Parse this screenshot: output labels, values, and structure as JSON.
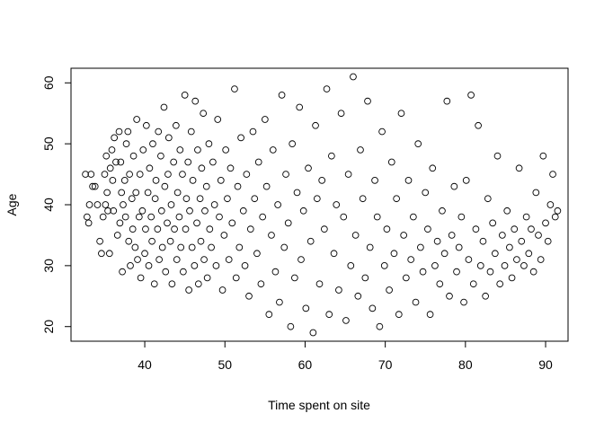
{
  "chart_data": {
    "type": "scatter",
    "title": "",
    "xlabel": "Time spent on site",
    "ylabel": "Age",
    "xlim": [
      30.8,
      92.8
    ],
    "ylim": [
      17.6,
      62.4
    ],
    "xticks": [
      40,
      50,
      60,
      70,
      80,
      90
    ],
    "yticks": [
      20,
      30,
      40,
      50,
      60
    ],
    "grid": false,
    "legend": "none",
    "marker": "open-circle",
    "colors": {
      "marker": "#000000",
      "axis": "#000000",
      "background": "#ffffff"
    },
    "points": [
      [
        32.6,
        45.0
      ],
      [
        32.8,
        38.0
      ],
      [
        33.0,
        37.0
      ],
      [
        33.1,
        40.0
      ],
      [
        33.3,
        45.0
      ],
      [
        33.5,
        43.0
      ],
      [
        33.8,
        43.0
      ],
      [
        34.1,
        40.0
      ],
      [
        34.4,
        34.0
      ],
      [
        34.6,
        32.0
      ],
      [
        34.8,
        38.0
      ],
      [
        35.0,
        45.0
      ],
      [
        35.1,
        40.0
      ],
      [
        35.2,
        48.0
      ],
      [
        35.3,
        42.0
      ],
      [
        35.4,
        39.0
      ],
      [
        35.6,
        32.0
      ],
      [
        35.7,
        46.0
      ],
      [
        35.9,
        49.0
      ],
      [
        36.0,
        44.0
      ],
      [
        36.1,
        39.0
      ],
      [
        36.2,
        51.0
      ],
      [
        36.4,
        47.0
      ],
      [
        36.6,
        35.0
      ],
      [
        36.8,
        52.0
      ],
      [
        36.9,
        37.0
      ],
      [
        37.0,
        47.0
      ],
      [
        37.1,
        42.0
      ],
      [
        37.2,
        29.0
      ],
      [
        37.3,
        40.0
      ],
      [
        37.5,
        44.0
      ],
      [
        37.6,
        38.0
      ],
      [
        37.7,
        50.0
      ],
      [
        37.9,
        52.0
      ],
      [
        38.0,
        34.0
      ],
      [
        38.1,
        45.0
      ],
      [
        38.2,
        30.0
      ],
      [
        38.4,
        41.0
      ],
      [
        38.5,
        36.0
      ],
      [
        38.6,
        48.0
      ],
      [
        38.8,
        33.0
      ],
      [
        38.9,
        42.0
      ],
      [
        39.0,
        54.0
      ],
      [
        39.1,
        31.0
      ],
      [
        39.3,
        38.0
      ],
      [
        39.4,
        45.0
      ],
      [
        39.5,
        28.0
      ],
      [
        39.7,
        39.0
      ],
      [
        39.8,
        49.0
      ],
      [
        40.0,
        32.0
      ],
      [
        40.1,
        36.0
      ],
      [
        40.2,
        53.0
      ],
      [
        40.4,
        42.0
      ],
      [
        40.5,
        30.0
      ],
      [
        40.6,
        46.0
      ],
      [
        40.8,
        38.0
      ],
      [
        40.9,
        34.0
      ],
      [
        41.0,
        50.0
      ],
      [
        41.2,
        27.0
      ],
      [
        41.3,
        41.0
      ],
      [
        41.4,
        44.0
      ],
      [
        41.6,
        36.0
      ],
      [
        41.7,
        52.0
      ],
      [
        41.8,
        31.0
      ],
      [
        42.0,
        48.0
      ],
      [
        42.1,
        39.0
      ],
      [
        42.2,
        33.0
      ],
      [
        42.4,
        56.0
      ],
      [
        42.5,
        43.0
      ],
      [
        42.6,
        29.0
      ],
      [
        42.8,
        37.0
      ],
      [
        42.9,
        45.0
      ],
      [
        43.0,
        51.0
      ],
      [
        43.2,
        34.0
      ],
      [
        43.3,
        40.0
      ],
      [
        43.4,
        27.0
      ],
      [
        43.6,
        47.0
      ],
      [
        43.7,
        36.0
      ],
      [
        43.9,
        53.0
      ],
      [
        44.0,
        31.0
      ],
      [
        44.1,
        42.0
      ],
      [
        44.3,
        38.0
      ],
      [
        44.4,
        49.0
      ],
      [
        44.5,
        33.0
      ],
      [
        44.7,
        45.0
      ],
      [
        44.8,
        29.0
      ],
      [
        45.0,
        58.0
      ],
      [
        45.1,
        36.0
      ],
      [
        45.2,
        41.0
      ],
      [
        45.4,
        47.0
      ],
      [
        45.5,
        26.0
      ],
      [
        45.6,
        39.0
      ],
      [
        45.8,
        52.0
      ],
      [
        45.9,
        33.0
      ],
      [
        46.0,
        44.0
      ],
      [
        46.2,
        30.0
      ],
      [
        46.3,
        57.0
      ],
      [
        46.5,
        37.0
      ],
      [
        46.6,
        49.0
      ],
      [
        46.7,
        27.0
      ],
      [
        46.9,
        41.0
      ],
      [
        47.0,
        34.0
      ],
      [
        47.1,
        46.0
      ],
      [
        47.3,
        55.0
      ],
      [
        47.4,
        31.0
      ],
      [
        47.5,
        39.0
      ],
      [
        47.7,
        43.0
      ],
      [
        47.8,
        28.0
      ],
      [
        48.0,
        50.0
      ],
      [
        48.1,
        36.0
      ],
      [
        48.3,
        33.0
      ],
      [
        48.5,
        47.0
      ],
      [
        48.7,
        40.0
      ],
      [
        48.9,
        30.0
      ],
      [
        49.1,
        54.0
      ],
      [
        49.3,
        38.0
      ],
      [
        49.5,
        44.0
      ],
      [
        49.7,
        26.0
      ],
      [
        49.9,
        35.0
      ],
      [
        50.1,
        49.0
      ],
      [
        50.3,
        41.0
      ],
      [
        50.5,
        31.0
      ],
      [
        50.7,
        46.0
      ],
      [
        50.9,
        37.0
      ],
      [
        51.2,
        59.0
      ],
      [
        51.4,
        28.0
      ],
      [
        51.6,
        43.0
      ],
      [
        51.8,
        33.0
      ],
      [
        52.0,
        51.0
      ],
      [
        52.3,
        39.0
      ],
      [
        52.5,
        30.0
      ],
      [
        52.7,
        45.0
      ],
      [
        53.0,
        25.0
      ],
      [
        53.2,
        36.0
      ],
      [
        53.5,
        52.0
      ],
      [
        53.7,
        41.0
      ],
      [
        54.0,
        32.0
      ],
      [
        54.2,
        47.0
      ],
      [
        54.5,
        27.0
      ],
      [
        54.7,
        38.0
      ],
      [
        55.0,
        54.0
      ],
      [
        55.2,
        43.0
      ],
      [
        55.5,
        22.0
      ],
      [
        55.8,
        35.0
      ],
      [
        56.0,
        49.0
      ],
      [
        56.3,
        29.0
      ],
      [
        56.6,
        40.0
      ],
      [
        56.8,
        24.0
      ],
      [
        57.1,
        58.0
      ],
      [
        57.4,
        33.0
      ],
      [
        57.6,
        45.0
      ],
      [
        57.9,
        37.0
      ],
      [
        58.2,
        20.0
      ],
      [
        58.4,
        50.0
      ],
      [
        58.7,
        28.0
      ],
      [
        59.0,
        42.0
      ],
      [
        59.3,
        56.0
      ],
      [
        59.5,
        31.0
      ],
      [
        59.8,
        39.0
      ],
      [
        60.1,
        23.0
      ],
      [
        60.4,
        46.0
      ],
      [
        60.7,
        34.0
      ],
      [
        61.0,
        19.0
      ],
      [
        61.3,
        53.0
      ],
      [
        61.5,
        41.0
      ],
      [
        61.8,
        27.0
      ],
      [
        62.1,
        44.0
      ],
      [
        62.4,
        36.0
      ],
      [
        62.7,
        59.0
      ],
      [
        63.0,
        22.0
      ],
      [
        63.3,
        48.0
      ],
      [
        63.6,
        32.0
      ],
      [
        63.9,
        40.0
      ],
      [
        64.2,
        26.0
      ],
      [
        64.5,
        55.0
      ],
      [
        64.8,
        38.0
      ],
      [
        65.1,
        21.0
      ],
      [
        65.4,
        45.0
      ],
      [
        65.7,
        30.0
      ],
      [
        66.0,
        61.0
      ],
      [
        66.3,
        35.0
      ],
      [
        66.6,
        25.0
      ],
      [
        66.9,
        49.0
      ],
      [
        67.2,
        41.0
      ],
      [
        67.5,
        28.0
      ],
      [
        67.8,
        57.0
      ],
      [
        68.1,
        33.0
      ],
      [
        68.4,
        23.0
      ],
      [
        68.7,
        44.0
      ],
      [
        69.0,
        38.0
      ],
      [
        69.3,
        20.0
      ],
      [
        69.6,
        52.0
      ],
      [
        69.9,
        30.0
      ],
      [
        70.2,
        36.0
      ],
      [
        70.5,
        26.0
      ],
      [
        70.8,
        47.0
      ],
      [
        71.1,
        32.0
      ],
      [
        71.4,
        41.0
      ],
      [
        71.7,
        22.0
      ],
      [
        72.0,
        55.0
      ],
      [
        72.3,
        35.0
      ],
      [
        72.6,
        28.0
      ],
      [
        72.9,
        44.0
      ],
      [
        73.2,
        31.0
      ],
      [
        73.5,
        38.0
      ],
      [
        73.8,
        24.0
      ],
      [
        74.1,
        50.0
      ],
      [
        74.4,
        33.0
      ],
      [
        74.7,
        29.0
      ],
      [
        75.0,
        42.0
      ],
      [
        75.3,
        36.0
      ],
      [
        75.6,
        22.0
      ],
      [
        75.9,
        46.0
      ],
      [
        76.2,
        30.0
      ],
      [
        76.5,
        34.0
      ],
      [
        76.8,
        27.0
      ],
      [
        77.1,
        39.0
      ],
      [
        77.4,
        32.0
      ],
      [
        77.7,
        57.0
      ],
      [
        78.0,
        25.0
      ],
      [
        78.3,
        35.0
      ],
      [
        78.6,
        43.0
      ],
      [
        78.9,
        29.0
      ],
      [
        79.2,
        33.0
      ],
      [
        79.5,
        38.0
      ],
      [
        79.8,
        24.0
      ],
      [
        80.1,
        44.0
      ],
      [
        80.4,
        31.0
      ],
      [
        80.7,
        58.0
      ],
      [
        81.0,
        27.0
      ],
      [
        81.3,
        36.0
      ],
      [
        81.6,
        53.0
      ],
      [
        81.9,
        30.0
      ],
      [
        82.2,
        34.0
      ],
      [
        82.5,
        25.0
      ],
      [
        82.8,
        41.0
      ],
      [
        83.1,
        29.0
      ],
      [
        83.4,
        37.0
      ],
      [
        83.7,
        32.0
      ],
      [
        84.0,
        48.0
      ],
      [
        84.3,
        27.0
      ],
      [
        84.6,
        35.0
      ],
      [
        84.9,
        30.0
      ],
      [
        85.2,
        39.0
      ],
      [
        85.5,
        33.0
      ],
      [
        85.8,
        28.0
      ],
      [
        86.1,
        36.0
      ],
      [
        86.4,
        31.0
      ],
      [
        86.7,
        46.0
      ],
      [
        87.0,
        34.0
      ],
      [
        87.3,
        30.0
      ],
      [
        87.6,
        38.0
      ],
      [
        87.9,
        32.0
      ],
      [
        88.2,
        36.0
      ],
      [
        88.5,
        29.0
      ],
      [
        88.8,
        42.0
      ],
      [
        89.1,
        35.0
      ],
      [
        89.4,
        31.0
      ],
      [
        89.7,
        48.0
      ],
      [
        90.0,
        37.0
      ],
      [
        90.3,
        34.0
      ],
      [
        90.6,
        40.0
      ],
      [
        90.9,
        45.0
      ],
      [
        91.2,
        38.0
      ],
      [
        91.5,
        39.0
      ]
    ]
  }
}
